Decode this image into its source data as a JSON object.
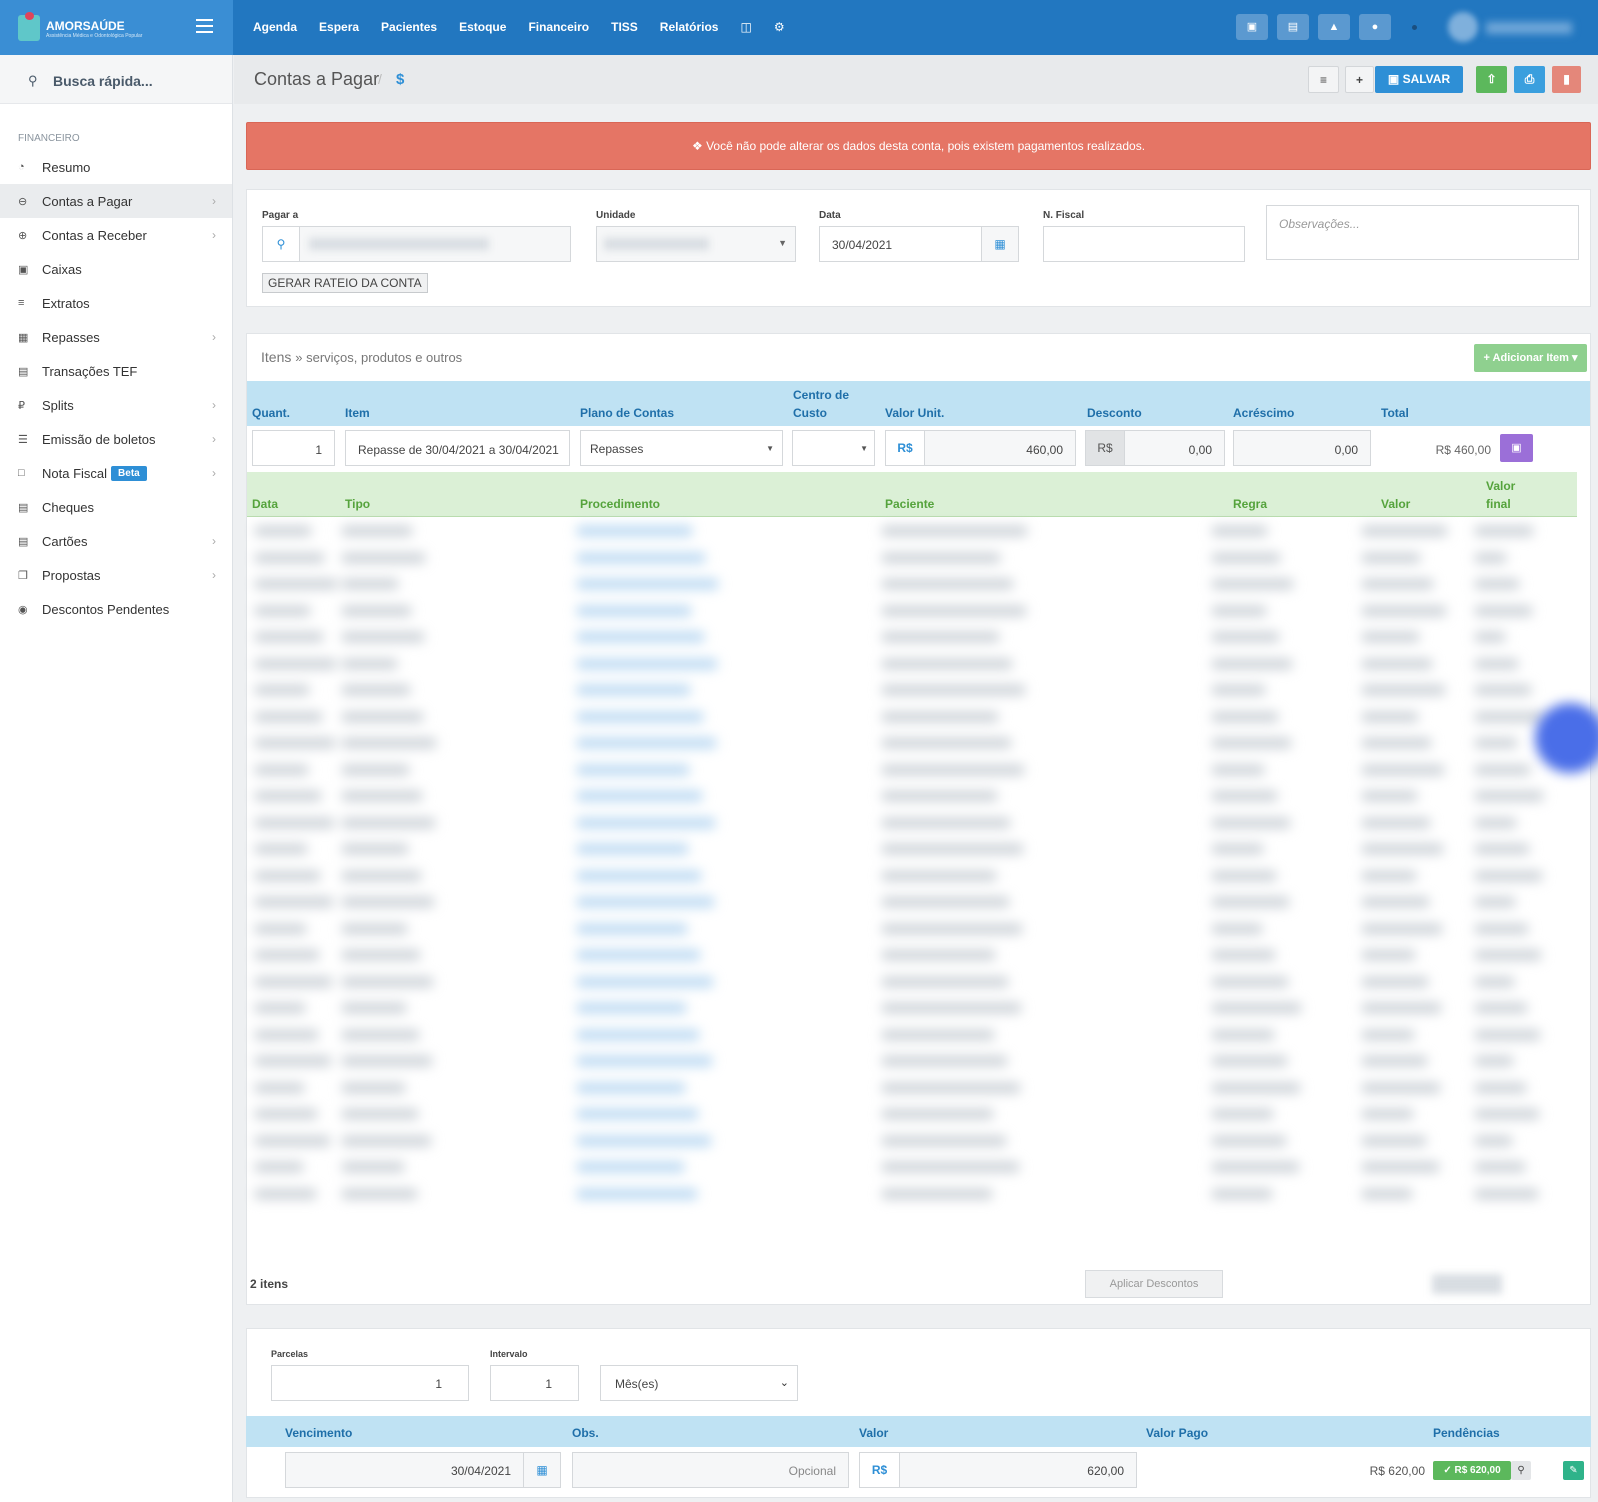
{
  "brand": {
    "name": "AMORSAÚDE",
    "tagline": "Assistência Médica e Odontológica Popular"
  },
  "nav": {
    "items": [
      "Agenda",
      "Espera",
      "Pacientes",
      "Estoque",
      "Financeiro",
      "TISS",
      "Relatórios"
    ]
  },
  "sidebar": {
    "search_label": "Busca rápida...",
    "section": "FINANCEIRO",
    "items": [
      {
        "label": "Resumo"
      },
      {
        "label": "Contas a Pagar"
      },
      {
        "label": "Contas a Receber"
      },
      {
        "label": "Caixas"
      },
      {
        "label": "Extratos"
      },
      {
        "label": "Repasses"
      },
      {
        "label": "Transações TEF"
      },
      {
        "label": "Splits"
      },
      {
        "label": "Emissão de boletos"
      },
      {
        "label": "Nota Fiscal"
      },
      {
        "label": "Cheques"
      },
      {
        "label": "Cartões"
      },
      {
        "label": "Propostas"
      },
      {
        "label": "Descontos Pendentes"
      }
    ],
    "beta_badge": "Beta"
  },
  "header": {
    "title": "Contas a Pagar",
    "dollar": "$",
    "save_label": "SALVAR"
  },
  "alert": {
    "text": "Você não pode alterar os dados desta conta, pois existem pagamentos realizados."
  },
  "form": {
    "pagar_a_label": "Pagar a",
    "unidade_label": "Unidade",
    "data_label": "Data",
    "data_value": "30/04/2021",
    "nfiscal_label": "N. Fiscal",
    "obs_placeholder": "Observações...",
    "rateio_button": "GERAR RATEIO DA CONTA"
  },
  "items": {
    "title": "Itens",
    "subtitle": "» serviços, produtos e outros",
    "add_button": "Adicionar Item",
    "headers": {
      "quant": "Quant.",
      "item": "Item",
      "plano": "Plano de Contas",
      "centro1": "Centro de",
      "centro2": "Custo",
      "valor_unit": "Valor Unit.",
      "desconto": "Desconto",
      "acrescimo": "Acréscimo",
      "total": "Total"
    },
    "row": {
      "quant": "1",
      "item": "Repasse de 30/04/2021 a 30/04/2021",
      "plano": "Repasses",
      "currency": "R$",
      "valor_unit": "460,00",
      "desconto": "0,00",
      "acrescimo": "0,00",
      "total": "R$ 460,00"
    },
    "sub_headers": {
      "data": "Data",
      "tipo": "Tipo",
      "procedimento": "Procedimento",
      "paciente": "Paciente",
      "regra": "Regra",
      "valor": "Valor",
      "valor_final1": "Valor",
      "valor_final2": "final"
    },
    "count": "2 itens",
    "apply_discount": "Aplicar Descontos"
  },
  "installments": {
    "parcelas_label": "Parcelas",
    "parcelas_value": "1",
    "intervalo_label": "Intervalo",
    "intervalo_value": "1",
    "period": "Mês(es)",
    "headers": {
      "vencimento": "Vencimento",
      "obs": "Obs.",
      "valor": "Valor",
      "valor_pago": "Valor Pago",
      "pendencias": "Pendências"
    },
    "row": {
      "vencimento": "30/04/2021",
      "obs_placeholder": "Opcional",
      "currency": "R$",
      "valor": "620,00",
      "valor_pago": "R$ 620,00",
      "pago_badge": "R$ 620,00"
    }
  },
  "colors": {
    "topbar": "#2277c0",
    "alert": "#e57565",
    "save": "#2e8fd6",
    "green": "#5cb85c"
  }
}
